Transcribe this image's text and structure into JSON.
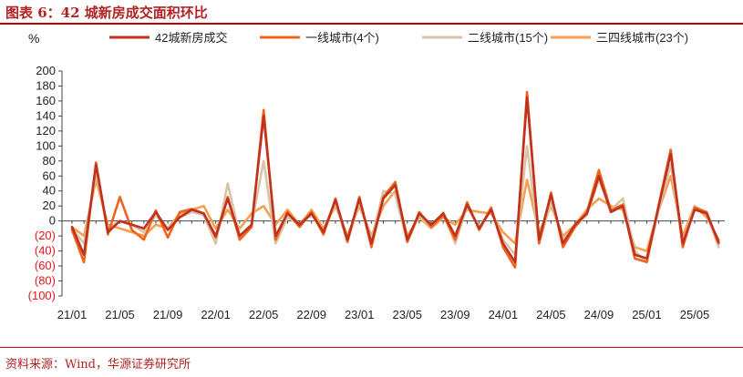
{
  "figure": {
    "title": "图表 6：42 城新房成交面积环比",
    "source": "资料来源：Wind，华源证券研究所"
  },
  "chart_data": {
    "type": "line",
    "ylabel": "%",
    "ylim": [
      -100,
      200
    ],
    "yticks": [
      -100,
      -80,
      -60,
      -40,
      -20,
      0,
      20,
      40,
      60,
      80,
      100,
      120,
      140,
      160,
      180,
      200
    ],
    "ytick_labels": [
      "(100)",
      "(80)",
      "(60)",
      "(40)",
      "(20)",
      "0",
      "20",
      "40",
      "60",
      "80",
      "100",
      "120",
      "140",
      "160",
      "180",
      "200"
    ],
    "negative_label_color": "#e8141b",
    "xticks": [
      "21/01",
      "21/05",
      "21/09",
      "22/01",
      "22/05",
      "22/09",
      "23/01",
      "23/05",
      "23/09",
      "24/01",
      "24/05",
      "24/09",
      "25/01",
      "25/05"
    ],
    "x": [
      "21/01",
      "21/02",
      "21/03",
      "21/04",
      "21/05",
      "21/06",
      "21/07",
      "21/08",
      "21/09",
      "21/10",
      "21/11",
      "21/12",
      "22/01",
      "22/02",
      "22/03",
      "22/04",
      "22/05",
      "22/06",
      "22/07",
      "22/08",
      "22/09",
      "22/10",
      "22/11",
      "22/12",
      "23/01",
      "23/02",
      "23/03",
      "23/04",
      "23/05",
      "23/06",
      "23/07",
      "23/08",
      "23/09",
      "23/10",
      "23/11",
      "23/12",
      "24/01",
      "24/02",
      "24/03",
      "24/04",
      "24/05",
      "24/06",
      "24/07",
      "24/08",
      "24/09",
      "24/10",
      "24/11",
      "24/12",
      "25/01",
      "25/02",
      "25/03",
      "25/04",
      "25/05",
      "25/06",
      "25/07"
    ],
    "legend_position": "top",
    "grid": false,
    "series": [
      {
        "name": "42城新房成交",
        "color": "#c0311e",
        "values": [
          -8,
          -45,
          75,
          -15,
          0,
          -5,
          -10,
          12,
          -12,
          5,
          15,
          10,
          -20,
          30,
          -20,
          -5,
          140,
          -20,
          10,
          -5,
          10,
          -15,
          28,
          -25,
          30,
          -30,
          30,
          48,
          -25,
          10,
          -5,
          10,
          -20,
          22,
          -10,
          15,
          -30,
          -55,
          165,
          -25,
          35,
          -30,
          -5,
          10,
          60,
          12,
          20,
          -45,
          -50,
          20,
          90,
          -30,
          15,
          10,
          -28
        ]
      },
      {
        "name": "一线城市(4个)",
        "color": "#f0641e",
        "values": [
          -12,
          -55,
          78,
          -18,
          32,
          -12,
          -25,
          14,
          -22,
          12,
          16,
          10,
          -22,
          32,
          -25,
          -8,
          148,
          -25,
          12,
          -8,
          12,
          -18,
          30,
          -28,
          32,
          -35,
          32,
          52,
          -28,
          12,
          -8,
          8,
          -25,
          25,
          -12,
          18,
          -35,
          -62,
          172,
          -30,
          38,
          -35,
          -8,
          12,
          68,
          14,
          22,
          -50,
          -55,
          22,
          95,
          -35,
          18,
          12,
          -30
        ]
      },
      {
        "name": "二线城市(15个)",
        "color": "#d9c4a8",
        "values": [
          -10,
          -30,
          65,
          -10,
          0,
          -5,
          -15,
          8,
          -10,
          5,
          12,
          8,
          -30,
          50,
          -20,
          -5,
          80,
          -30,
          5,
          -5,
          8,
          -15,
          25,
          -28,
          25,
          -25,
          40,
          35,
          -28,
          8,
          -10,
          12,
          -30,
          20,
          -8,
          15,
          -25,
          -45,
          100,
          -30,
          25,
          -25,
          -8,
          8,
          55,
          15,
          30,
          -40,
          -55,
          15,
          75,
          -30,
          20,
          10,
          -35
        ]
      },
      {
        "name": "三四线城市(23个)",
        "color": "#f5a050",
        "values": [
          -8,
          -20,
          55,
          -5,
          -10,
          -15,
          -20,
          -5,
          -10,
          10,
          15,
          20,
          -10,
          15,
          -10,
          10,
          20,
          -5,
          15,
          -5,
          15,
          -10,
          20,
          -20,
          20,
          -20,
          20,
          40,
          -20,
          5,
          -10,
          5,
          -5,
          15,
          12,
          10,
          -15,
          -30,
          55,
          -15,
          20,
          -20,
          -5,
          15,
          30,
          20,
          15,
          -35,
          -40,
          15,
          60,
          -20,
          20,
          5,
          -25
        ]
      }
    ]
  }
}
